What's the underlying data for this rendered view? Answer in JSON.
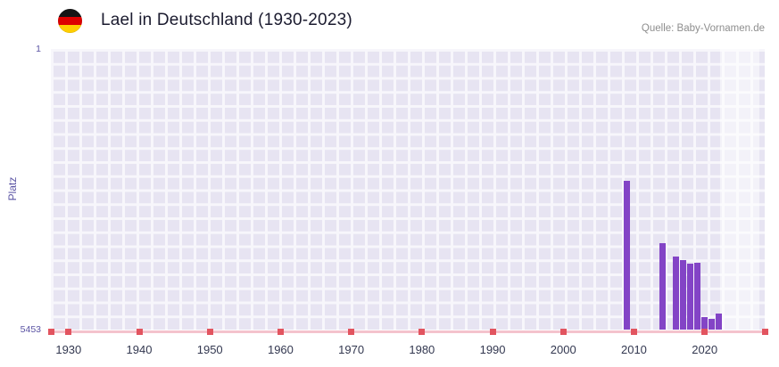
{
  "header": {
    "title": "Lael in Deutschland (1930-2023)",
    "source": "Quelle: Baby-Vornamen.de",
    "flag_icon": "german-flag",
    "flag_colors": [
      "#151515",
      "#dd0000",
      "#ffce00"
    ]
  },
  "chart_data": {
    "type": "bar",
    "title": "Lael in Deutschland (1930-2023)",
    "xlabel": "",
    "ylabel": "Platz",
    "y_axis": {
      "label": "Platz",
      "top_tick": 1,
      "bottom_tick": 5453,
      "inverted": true,
      "range": [
        1,
        5453
      ]
    },
    "x_range": [
      1927.5,
      2028.5
    ],
    "x_ticks": [
      1930,
      1940,
      1950,
      1960,
      1970,
      1980,
      1990,
      2000,
      2010,
      2020
    ],
    "grid": true,
    "legend": false,
    "points": [
      {
        "year": 2009,
        "rank": 2560
      },
      {
        "year": 2014,
        "rank": 3770
      },
      {
        "year": 2016,
        "rank": 4030
      },
      {
        "year": 2017,
        "rank": 4110
      },
      {
        "year": 2018,
        "rank": 4170
      },
      {
        "year": 2019,
        "rank": 4160
      },
      {
        "year": 2020,
        "rank": 5210
      },
      {
        "year": 2021,
        "rank": 5240
      },
      {
        "year": 2022,
        "rank": 5140
      }
    ],
    "highlight_region": {
      "start": 2022.2,
      "end": 2027.8
    },
    "colors": {
      "bar": "#8344c6",
      "plot_bg": "#e7e4f2",
      "grid_line": "#f7f6fb",
      "baseline": "#f4c3cd",
      "tick_marker": "#e2545f",
      "axis_text": "#5b54a4",
      "x_tick_text": "#333850",
      "title_text": "#1b1b2f",
      "source_text": "#8e8e8e",
      "highlight": "rgba(255,255,255,0.5)"
    }
  }
}
